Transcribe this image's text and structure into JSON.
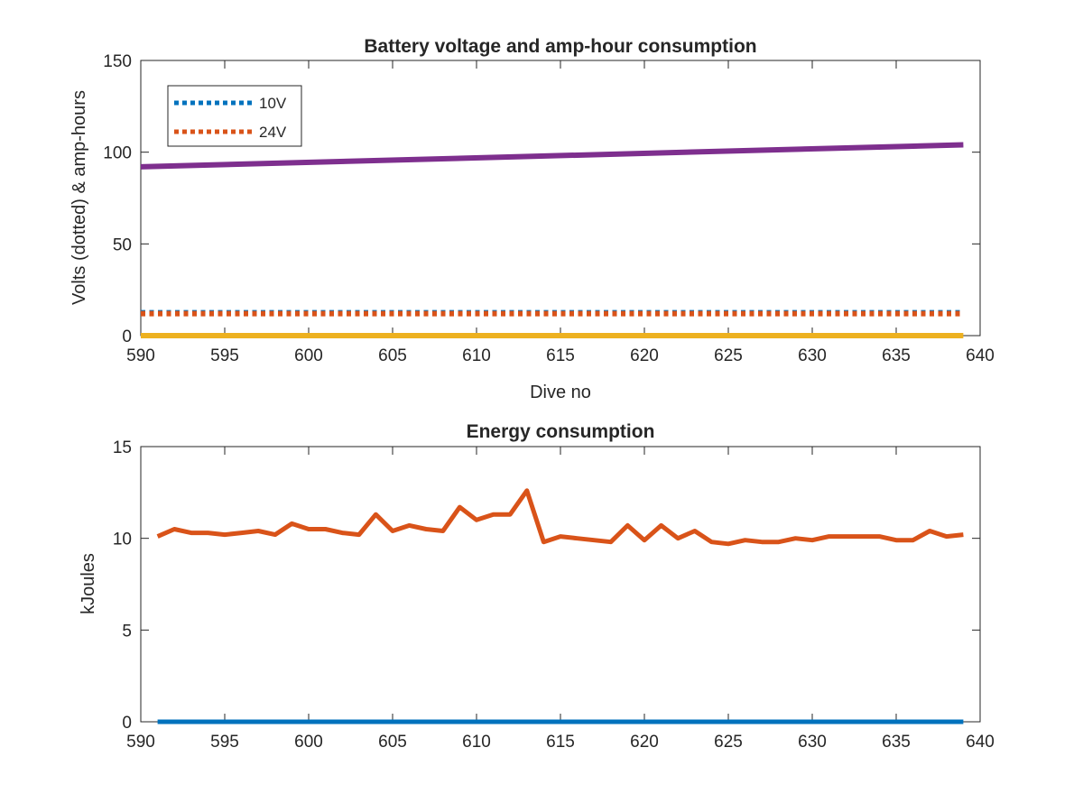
{
  "chart_data": [
    {
      "type": "line",
      "title": "Battery voltage and amp-hour consumption",
      "xlabel": "Dive no",
      "ylabel": "Volts (dotted) & amp-hours",
      "xlim": [
        590,
        640
      ],
      "ylim": [
        0,
        150
      ],
      "xticks": [
        590,
        595,
        600,
        605,
        610,
        615,
        620,
        625,
        630,
        635,
        640
      ],
      "yticks": [
        0,
        50,
        100,
        150
      ],
      "grid": false,
      "legend_position": "top-left",
      "x": [
        590,
        639
      ],
      "series": [
        {
          "name": "10V",
          "style": "dotted",
          "color": "#0072bd",
          "values": [
            12.5,
            12.5
          ]
        },
        {
          "name": "24V",
          "style": "dotted",
          "color": "#d95319",
          "values": [
            12.0,
            12.0
          ]
        },
        {
          "style": "solid",
          "color": "#edb120",
          "values": [
            0,
            0
          ]
        },
        {
          "style": "solid",
          "color": "#7e2f8e",
          "values": [
            92,
            104
          ]
        }
      ]
    },
    {
      "type": "line",
      "title": "Energy consumption",
      "xlabel": "",
      "ylabel": "kJoules",
      "xlim": [
        590,
        640
      ],
      "ylim": [
        0,
        15
      ],
      "xticks": [
        590,
        595,
        600,
        605,
        610,
        615,
        620,
        625,
        630,
        635,
        640
      ],
      "yticks": [
        0,
        5,
        10,
        15
      ],
      "grid": false,
      "x": [
        591,
        592,
        593,
        594,
        595,
        596,
        597,
        598,
        599,
        600,
        601,
        602,
        603,
        604,
        605,
        606,
        607,
        608,
        609,
        610,
        611,
        612,
        613,
        614,
        615,
        616,
        617,
        618,
        619,
        620,
        621,
        622,
        623,
        624,
        625,
        626,
        627,
        628,
        629,
        630,
        631,
        632,
        633,
        634,
        635,
        636,
        637,
        638,
        639
      ],
      "series": [
        {
          "color": "#0072bd",
          "values": [
            0,
            0,
            0,
            0,
            0,
            0,
            0,
            0,
            0,
            0,
            0,
            0,
            0,
            0,
            0,
            0,
            0,
            0,
            0,
            0,
            0,
            0,
            0,
            0,
            0,
            0,
            0,
            0,
            0,
            0,
            0,
            0,
            0,
            0,
            0,
            0,
            0,
            0,
            0,
            0,
            0,
            0,
            0,
            0,
            0,
            0,
            0,
            0,
            0
          ]
        },
        {
          "color": "#d95319",
          "values": [
            10.1,
            10.5,
            10.3,
            10.3,
            10.2,
            10.3,
            10.4,
            10.2,
            10.8,
            10.5,
            10.5,
            10.3,
            10.2,
            11.3,
            10.4,
            10.7,
            10.5,
            10.4,
            11.7,
            11.0,
            11.3,
            11.3,
            12.6,
            9.8,
            10.1,
            10.0,
            9.9,
            9.8,
            10.7,
            9.9,
            10.7,
            10.0,
            10.4,
            9.8,
            9.7,
            9.9,
            9.8,
            9.8,
            10.0,
            9.9,
            10.1,
            10.1,
            10.1,
            10.1,
            9.9,
            9.9,
            10.4,
            10.1,
            10.2
          ]
        }
      ]
    }
  ]
}
